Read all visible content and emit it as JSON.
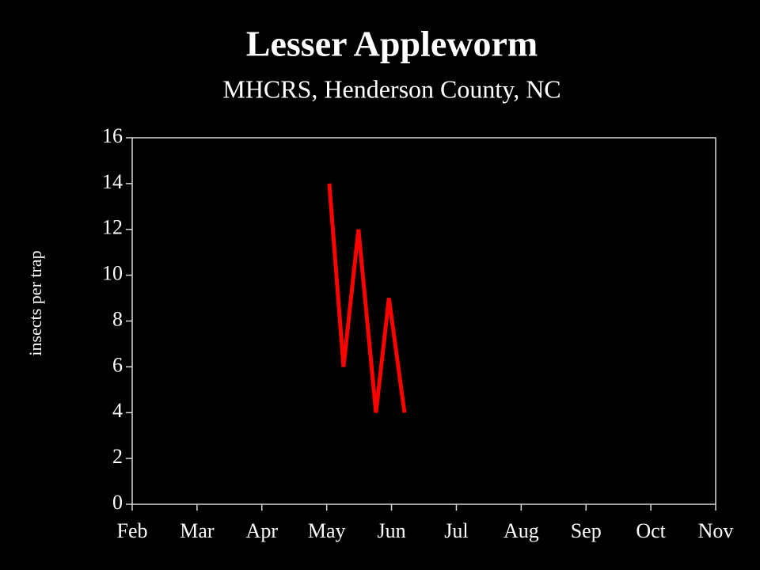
{
  "chart_data": {
    "type": "line",
    "title": "Lesser Appleworm",
    "subtitle": "MHCRS, Henderson County, NC",
    "y_label": "insects per trap",
    "x": [
      3.04,
      3.26,
      3.49,
      3.76,
      3.96,
      4.2
    ],
    "series": [
      {
        "color": "#ff0000",
        "values": [
          14,
          6,
          12,
          4,
          9,
          4
        ]
      }
    ],
    "xlim": [
      0,
      9
    ],
    "xticks": [
      {
        "value": 0,
        "label": "Feb"
      },
      {
        "value": 1,
        "label": "Mar"
      },
      {
        "value": 2,
        "label": "Apr"
      },
      {
        "value": 3,
        "label": "May"
      },
      {
        "value": 4,
        "label": "Jun"
      },
      {
        "value": 5,
        "label": "Jul"
      },
      {
        "value": 6,
        "label": "Aug"
      },
      {
        "value": 7,
        "label": "Sep"
      },
      {
        "value": 8,
        "label": "Oct"
      },
      {
        "value": 9,
        "label": "Nov"
      }
    ],
    "ylim": [
      0,
      16
    ],
    "yticks": [
      0,
      2,
      4,
      6,
      8,
      10,
      12,
      14,
      16
    ]
  }
}
